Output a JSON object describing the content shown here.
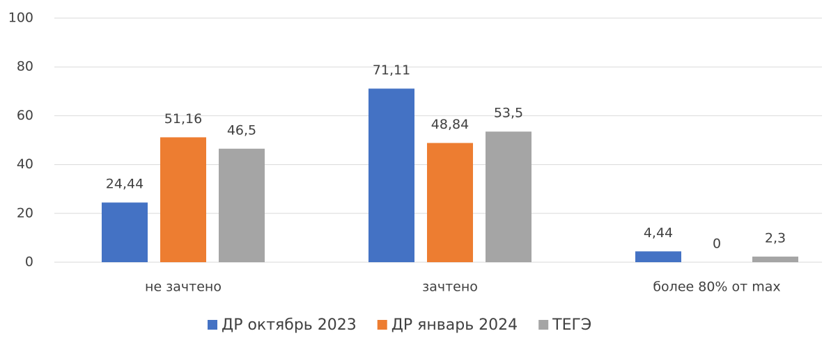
{
  "chart_data": {
    "type": "bar",
    "categories": [
      "не зачтено",
      "зачтено",
      "более 80% от max"
    ],
    "series": [
      {
        "name": "ДР октябрь 2023",
        "color": "#4472c4",
        "values": [
          24.44,
          71.11,
          4.44
        ],
        "value_labels": [
          "24,44",
          "71,11",
          "4,44"
        ]
      },
      {
        "name": "ДР январь 2024",
        "color": "#ed7d31",
        "values": [
          51.16,
          48.84,
          0
        ],
        "value_labels": [
          "51,16",
          "48,84",
          "0"
        ]
      },
      {
        "name": "ТЕГЭ",
        "color": "#a5a5a5",
        "values": [
          46.5,
          53.5,
          2.3
        ],
        "value_labels": [
          "46,5",
          "53,5",
          "2,3"
        ]
      }
    ],
    "ylim": [
      0,
      100
    ],
    "yticks": [
      0,
      20,
      40,
      60,
      80,
      100
    ],
    "grid": true,
    "legend": "bottom"
  }
}
